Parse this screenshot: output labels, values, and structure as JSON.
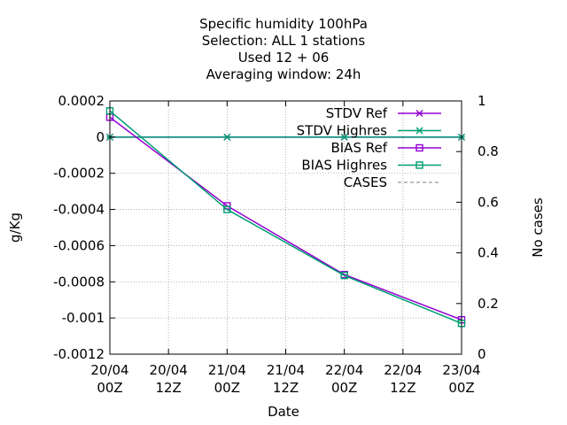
{
  "chart_data": {
    "type": "line",
    "title_lines": [
      "Specific humidity 100hPa",
      "Selection: ALL      1 stations",
      "Used  12 + 06",
      "Averaging window: 24h"
    ],
    "xlabel": "Date",
    "ylabel": "g/Kg",
    "y2label": "No cases",
    "x_ticks": [
      {
        "top": "20/04",
        "bottom": "00Z"
      },
      {
        "top": "20/04",
        "bottom": "12Z"
      },
      {
        "top": "21/04",
        "bottom": "00Z"
      },
      {
        "top": "21/04",
        "bottom": "12Z"
      },
      {
        "top": "22/04",
        "bottom": "00Z"
      },
      {
        "top": "22/04",
        "bottom": "12Z"
      },
      {
        "top": "23/04",
        "bottom": "00Z"
      }
    ],
    "xlim": [
      0,
      72
    ],
    "ylim": [
      -0.0012,
      0.0002
    ],
    "y_ticks": [
      {
        "value": 0.0002,
        "label": "0.0002"
      },
      {
        "value": 0,
        "label": "0"
      },
      {
        "value": -0.0002,
        "label": "-0.0002"
      },
      {
        "value": -0.0004,
        "label": "-0.0004"
      },
      {
        "value": -0.0006,
        "label": "-0.0006"
      },
      {
        "value": -0.0008,
        "label": "-0.0008"
      },
      {
        "value": -0.001,
        "label": "-0.001"
      },
      {
        "value": -0.0012,
        "label": "-0.0012"
      }
    ],
    "y2lim": [
      0,
      1
    ],
    "y2_ticks": [
      {
        "value": 1,
        "label": "1"
      },
      {
        "value": 0.8,
        "label": "0.8"
      },
      {
        "value": 0.6,
        "label": "0.6"
      },
      {
        "value": 0.4,
        "label": "0.4"
      },
      {
        "value": 0.2,
        "label": "0.2"
      },
      {
        "value": 0,
        "label": "0"
      }
    ],
    "grid": true,
    "legend_position": "top-right",
    "series": [
      {
        "name": "STDV Ref",
        "color": "#9400d3",
        "marker": "star",
        "x": [
          0,
          24,
          48,
          72
        ],
        "y": [
          0,
          0,
          0,
          0
        ]
      },
      {
        "name": "STDV Highres",
        "color": "#009e73",
        "marker": "star",
        "x": [
          0,
          24,
          48,
          72
        ],
        "y": [
          0,
          0,
          0,
          0
        ]
      },
      {
        "name": "BIAS Ref",
        "color": "#9400d3",
        "marker": "square",
        "x": [
          0,
          24,
          48,
          72
        ],
        "y": [
          0.00011,
          -0.00038,
          -0.00076,
          -0.00101
        ]
      },
      {
        "name": "BIAS Highres",
        "color": "#009e73",
        "marker": "square",
        "x": [
          0,
          24,
          48,
          72
        ],
        "y": [
          0.000145,
          -0.0004,
          -0.000765,
          -0.00103
        ]
      },
      {
        "name": "CASES",
        "color": "#808080",
        "marker": "none",
        "dashed": true,
        "x": [],
        "y": []
      }
    ]
  }
}
